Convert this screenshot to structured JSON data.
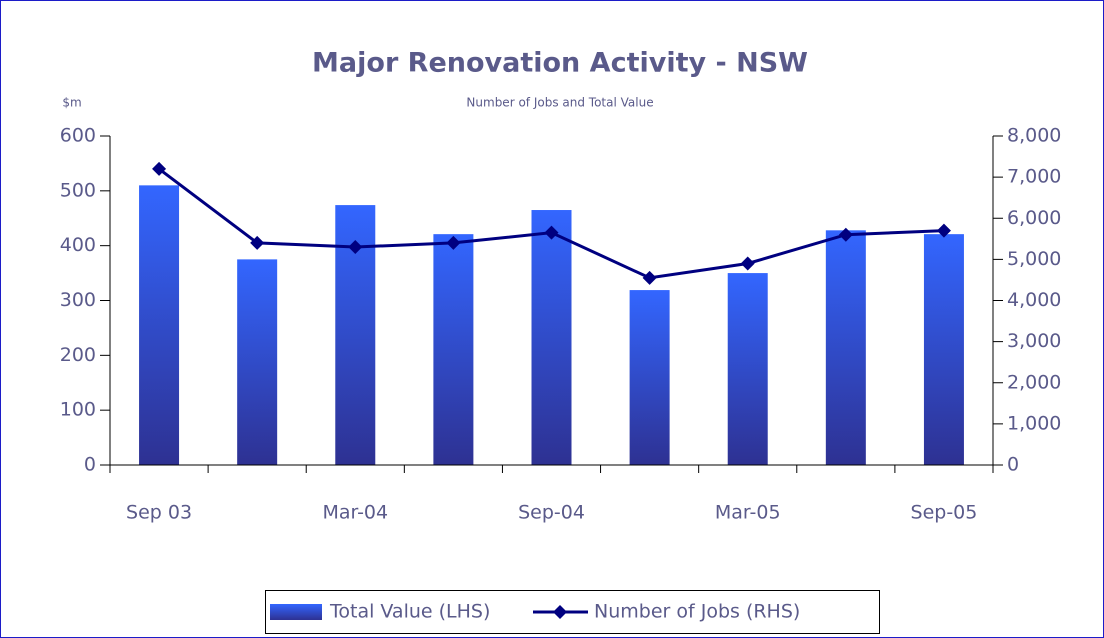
{
  "chart_data": {
    "type": "bar",
    "title": "Major Renovation Activity - NSW",
    "subtitle": "Number of Jobs and Total Value",
    "y_label": "$m",
    "categories": [
      "Sep 03",
      null,
      "Mar-04",
      null,
      "Sep-04",
      null,
      "Mar-05",
      null,
      "Sep-05"
    ],
    "series": [
      {
        "name": "Total Value (LHS)",
        "type": "bar",
        "color": "#3366ff",
        "gradient_to": "#2e3192",
        "values": [
          510,
          375,
          474,
          421,
          465,
          319,
          350,
          428,
          421
        ]
      },
      {
        "name": "Number of Jobs (RHS)",
        "type": "line",
        "color": "#000080",
        "axis": "y2",
        "values": [
          7200,
          5400,
          5300,
          5400,
          5650,
          4550,
          4900,
          5600,
          5700
        ]
      }
    ],
    "ylim": [
      0,
      600
    ],
    "yticks": [
      0,
      100,
      200,
      300,
      400,
      500,
      600
    ],
    "y2lim": [
      0,
      8000
    ],
    "y2ticks": [
      0,
      {
        "value": 1000,
        "label": "1,000"
      },
      {
        "value": 2000,
        "label": "2,000"
      },
      {
        "value": 3000,
        "label": "3,000"
      },
      {
        "value": 4000,
        "label": "4,000"
      },
      {
        "value": 5000,
        "label": "5,000"
      },
      {
        "value": 6000,
        "label": "6,000"
      },
      {
        "value": 7000,
        "label": "7,000"
      },
      {
        "value": 8000,
        "label": "8,000"
      }
    ],
    "legend": "bottom"
  }
}
